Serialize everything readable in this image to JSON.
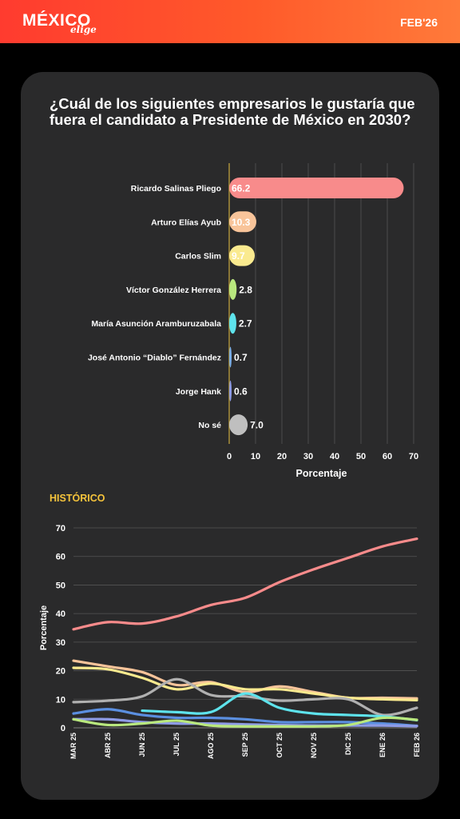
{
  "header": {
    "brand": "MÉXICO",
    "brand_sub": "elige",
    "date": "FEB'26"
  },
  "question": "¿Cuál de los siguientes empresarios le gustaría que fuera el candidato a Presidente de México en 2030?",
  "historic_label": "HISTÓRICO",
  "chart_data": [
    {
      "type": "bar",
      "orientation": "horizontal",
      "categories": [
        "Ricardo Salinas Pliego",
        "Arturo Elías Ayub",
        "Carlos Slim",
        "Víctor González Herrera",
        "María Asunción Aramburuzabala",
        "José Antonio “Diablo” Fernández",
        "Jorge Hank",
        "No sé"
      ],
      "values": [
        66.2,
        10.3,
        9.7,
        2.8,
        2.7,
        0.7,
        0.6,
        7.0
      ],
      "value_labels": [
        "66.2",
        "10.3",
        "9.7",
        "2.8",
        "2.7",
        "0.7",
        "0.6",
        "7.0"
      ],
      "colors": [
        "#f88b8b",
        "#f8c49a",
        "#faea8f",
        "#b9e87e",
        "#5ee3ec",
        "#7aaee8",
        "#8e9be6",
        "#bfbfbf"
      ],
      "xlabel": "Porcentaje",
      "xlim": [
        0,
        70
      ],
      "xticks": [
        "0",
        "10",
        "20",
        "30",
        "40",
        "50",
        "60",
        "70"
      ],
      "grid": true
    },
    {
      "type": "line",
      "x": [
        "MAR 25",
        "ABR 25",
        "JUN 25",
        "JUL 25",
        "AGO 25",
        "SEP 25",
        "OCT 25",
        "NOV 25",
        "DIC 25",
        "ENE 26",
        "FEB 26"
      ],
      "ylabel": "Porcentaje",
      "ylim": [
        0,
        70
      ],
      "yticks": [
        "0",
        "10",
        "20",
        "30",
        "40",
        "50",
        "60",
        "70"
      ],
      "grid": true,
      "series": [
        {
          "color": "#f88b8b",
          "values": [
            34.5,
            37,
            36.5,
            39,
            43,
            45.5,
            51,
            55.5,
            59.5,
            63.5,
            66.2
          ]
        },
        {
          "color": "#f8c49a",
          "values": [
            23.5,
            21.5,
            19.5,
            15,
            16,
            12.5,
            14.5,
            12.5,
            10.5,
            10.5,
            10.3
          ]
        },
        {
          "color": "#faea8f",
          "values": [
            21,
            20.5,
            17.5,
            13.5,
            15.5,
            13.5,
            13.5,
            12,
            10.5,
            10,
            9.7
          ]
        },
        {
          "color": "#b0b0b0",
          "values": [
            9,
            9.5,
            11,
            17,
            11.5,
            11,
            9.5,
            10,
            10,
            4.5,
            7.0
          ]
        },
        {
          "color": "#5ee3ec",
          "values": [
            null,
            null,
            6,
            5.5,
            5.5,
            12,
            7,
            5,
            4.5,
            4,
            2.7
          ]
        },
        {
          "color": "#5b8fe0",
          "values": [
            5,
            6.5,
            4.5,
            3.5,
            3.5,
            3,
            2,
            2,
            2,
            1.5,
            0.7
          ]
        },
        {
          "color": "#8e9be6",
          "values": [
            3,
            3,
            2,
            1.5,
            1.5,
            1.2,
            1,
            0.8,
            0.8,
            0.8,
            0.6
          ]
        },
        {
          "color": "#b9e87e",
          "values": [
            3,
            1,
            1.5,
            2.5,
            0.8,
            0.5,
            0.5,
            0.5,
            1,
            3.5,
            2.8
          ]
        }
      ]
    }
  ]
}
